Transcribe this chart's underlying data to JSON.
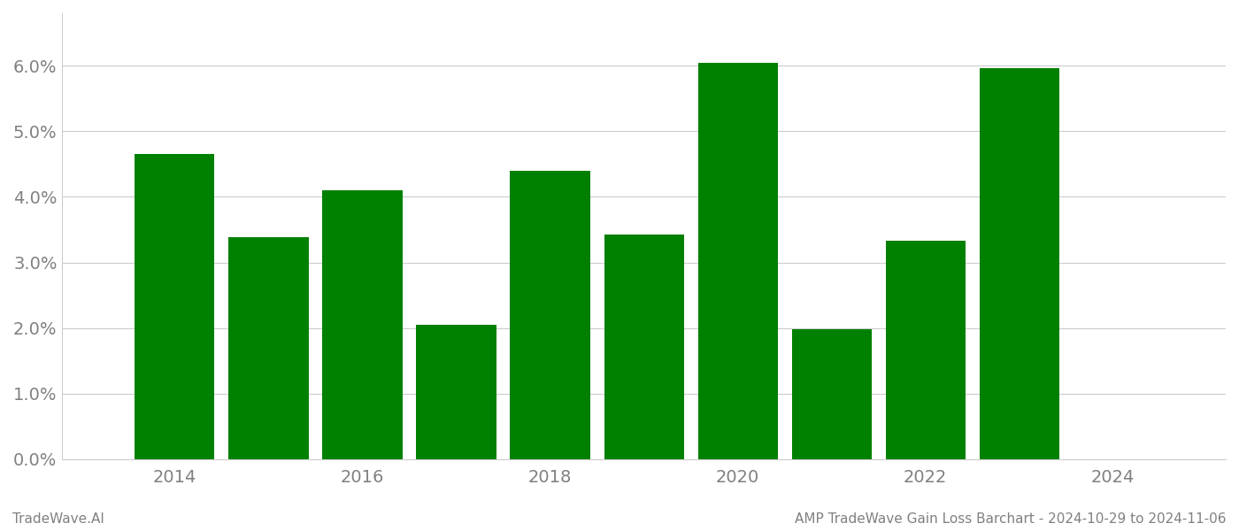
{
  "years": [
    2014,
    2015,
    2016,
    2017,
    2018,
    2019,
    2020,
    2021,
    2022,
    2023
  ],
  "values": [
    0.0465,
    0.0338,
    0.041,
    0.0205,
    0.044,
    0.0342,
    0.0605,
    0.0198,
    0.0333,
    0.0597
  ],
  "bar_color": "#008000",
  "background_color": "#ffffff",
  "ylim": [
    0,
    0.068
  ],
  "yticks": [
    0.0,
    0.01,
    0.02,
    0.03,
    0.04,
    0.05,
    0.06
  ],
  "xtick_labels": [
    "2014",
    "2016",
    "2018",
    "2020",
    "2022",
    "2024"
  ],
  "xtick_positions": [
    2014,
    2016,
    2018,
    2020,
    2022,
    2024
  ],
  "xlim_left": 2012.8,
  "xlim_right": 2025.2,
  "bar_width": 0.85,
  "footer_left": "TradeWave.AI",
  "footer_right": "AMP TradeWave Gain Loss Barchart - 2024-10-29 to 2024-11-06",
  "grid_color": "#cccccc",
  "text_color": "#808080",
  "footer_color": "#808080",
  "tick_fontsize": 14,
  "footer_fontsize": 11
}
